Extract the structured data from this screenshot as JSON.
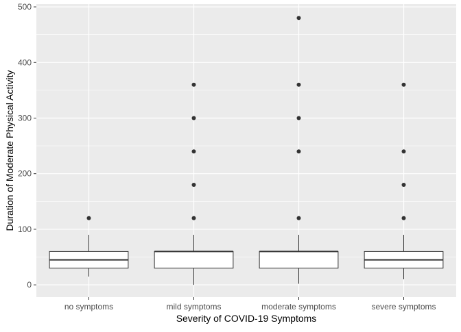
{
  "chart_data": {
    "type": "boxplot",
    "title": "",
    "xlabel": "Severity of COVID-19 Symptoms",
    "ylabel": "Duration of Moderate Physical Activity",
    "ylim": [
      -22,
      505
    ],
    "yticks": [
      0,
      100,
      200,
      300,
      400,
      500
    ],
    "ytick_labels": [
      "0",
      "100",
      "200",
      "300",
      "400",
      "500"
    ],
    "grid": true,
    "legend": "none",
    "colors": {
      "panel_background": "#ebebeb",
      "grid_major": "#ffffff",
      "box_fill": "#ffffff",
      "box_stroke": "#333333",
      "outlier": "#333333",
      "tick_text": "#4d4d4d",
      "axis_title": "#000000"
    },
    "categories": [
      "no symptoms",
      "mild symptoms",
      "moderate symptoms",
      "severe symptoms"
    ],
    "boxes": [
      {
        "category": "no symptoms",
        "whisker_low": 15,
        "q1": 30,
        "median": 45,
        "q3": 60,
        "whisker_high": 90,
        "outliers": [
          120
        ]
      },
      {
        "category": "mild symptoms",
        "whisker_low": 0,
        "q1": 30,
        "median": 60,
        "q3": 60,
        "whisker_high": 90,
        "outliers": [
          120,
          180,
          240,
          300,
          360
        ]
      },
      {
        "category": "moderate symptoms",
        "whisker_low": 2,
        "q1": 30,
        "median": 60,
        "q3": 60,
        "whisker_high": 90,
        "outliers": [
          120,
          240,
          300,
          360,
          480
        ]
      },
      {
        "category": "severe symptoms",
        "whisker_low": 10,
        "q1": 30,
        "median": 45,
        "q3": 60,
        "whisker_high": 90,
        "outliers": [
          120,
          180,
          240,
          360
        ]
      }
    ]
  }
}
